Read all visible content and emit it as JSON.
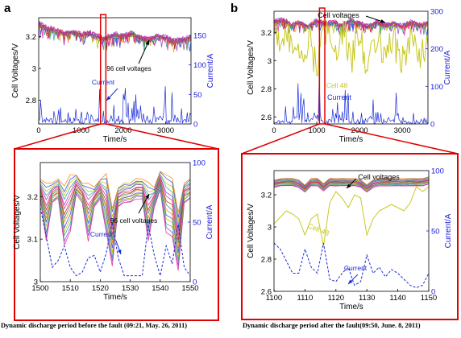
{
  "panels": [
    {
      "letter": "a",
      "caption": "Dynamic discharge period before the fault (09:21, May. 26, 2011)"
    },
    {
      "letter": "b",
      "caption": "Dynamic discharge period after the fault(09:50, June. 8, 2011)"
    }
  ],
  "colors": {
    "voltage_traces": [
      "#e0209a",
      "#9a40c0",
      "#30a0a0",
      "#c0c000",
      "#2050e0",
      "#ff7f00",
      "#2e8b57",
      "#d02030"
    ],
    "current": "#1a2bd8",
    "current_axis": "#1a1ad8",
    "zoom_box": "#e00000",
    "cell48": "#c8c820",
    "axis": "#000000"
  },
  "chart_data": [
    {
      "id": "a-top",
      "type": "line",
      "xlabel": "Time/s",
      "ylabel": "Cell Voltages/V",
      "y2label": "Current/A",
      "xlim": [
        0,
        3600
      ],
      "ylim": [
        2.65,
        3.32
      ],
      "y2lim": [
        0,
        180
      ],
      "xticks": [
        0,
        1000,
        2000,
        3000
      ],
      "yticks": [
        2.8,
        3,
        3.2
      ],
      "y2ticks": [
        0,
        50,
        100,
        150
      ],
      "annotations": [
        "96 cell voltages",
        "Current"
      ],
      "zoom_box_x": [
        1500,
        1550
      ],
      "series": [
        {
          "axis": "left",
          "x": [
            0,
            200,
            400,
            600,
            800,
            1000,
            1200,
            1400,
            1600,
            1800,
            2000,
            2200,
            2400,
            2600,
            2800,
            3000,
            3200,
            3400,
            3600
          ],
          "values": [
            3.28,
            3.25,
            3.24,
            3.22,
            3.23,
            3.21,
            3.22,
            3.2,
            3.19,
            3.21,
            3.2,
            3.22,
            3.19,
            3.18,
            3.2,
            3.19,
            3.17,
            3.18,
            3.19
          ]
        },
        {
          "axis": "right",
          "x": [
            0,
            200,
            400,
            600,
            800,
            1000,
            1200,
            1400,
            1600,
            1800,
            2000,
            2200,
            2400,
            2600,
            2800,
            3000,
            3200,
            3400,
            3600
          ],
          "values": [
            20,
            30,
            10,
            25,
            5,
            35,
            15,
            40,
            20,
            30,
            45,
            25,
            35,
            15,
            40,
            50,
            25,
            30,
            15
          ]
        }
      ]
    },
    {
      "id": "b-top",
      "type": "line",
      "xlabel": "Time/s",
      "ylabel": "Cell Voltages/V",
      "y2label": "Current/A",
      "xlim": [
        0,
        3600
      ],
      "ylim": [
        2.55,
        3.35
      ],
      "y2lim": [
        0,
        300
      ],
      "xticks": [
        0,
        1000,
        2000,
        3000
      ],
      "yticks": [
        2.6,
        2.8,
        3,
        3.2
      ],
      "y2ticks": [
        0,
        100,
        200,
        300
      ],
      "annotations": [
        "Cell voltages",
        "Cell 48",
        "Current"
      ],
      "zoom_box_x": [
        1100,
        1150
      ],
      "series": [
        {
          "axis": "left",
          "x": [
            0,
            200,
            400,
            600,
            800,
            1000,
            1200,
            1400,
            1600,
            1800,
            2000,
            2200,
            2400,
            2600,
            2800,
            3000,
            3200,
            3400,
            3600
          ],
          "values": [
            3.27,
            3.29,
            3.25,
            3.27,
            3.24,
            3.28,
            3.26,
            3.27,
            3.25,
            3.28,
            3.26,
            3.24,
            3.27,
            3.25,
            3.26,
            3.24,
            3.27,
            3.25,
            3.26
          ]
        },
        {
          "axis": "left",
          "name": "Cell 48",
          "x": [
            0,
            200,
            400,
            600,
            800,
            1000,
            1200,
            1400,
            1600,
            1800,
            2000,
            2200,
            2400,
            2600,
            2800,
            3000,
            3200,
            3400,
            3600
          ],
          "values": [
            3.24,
            3.1,
            3.2,
            3.0,
            3.15,
            2.98,
            3.2,
            3.05,
            3.24,
            3.0,
            3.18,
            2.95,
            3.2,
            3.05,
            3.15,
            2.98,
            3.18,
            3.0,
            3.1
          ]
        },
        {
          "axis": "right",
          "x": [
            0,
            200,
            400,
            600,
            800,
            1000,
            1200,
            1400,
            1600,
            1800,
            2000,
            2200,
            2400,
            2600,
            2800,
            3000,
            3200,
            3400,
            3600
          ],
          "values": [
            10,
            40,
            20,
            80,
            15,
            100,
            50,
            20,
            90,
            30,
            15,
            60,
            25,
            20,
            70,
            30,
            10,
            40,
            20
          ]
        }
      ]
    },
    {
      "id": "a-zoom",
      "type": "line",
      "xlabel": "Time/s",
      "ylabel": "Cell Voltages/V",
      "y2label": "Current/A",
      "xlim": [
        1500,
        1550
      ],
      "ylim": [
        3.0,
        3.28
      ],
      "y2lim": [
        0,
        100
      ],
      "xticks": [
        1500,
        1510,
        1520,
        1530,
        1540,
        1550
      ],
      "yticks": [
        3,
        3.1,
        3.2
      ],
      "y2ticks": [
        0,
        50,
        100
      ],
      "annotations": [
        "96 cell voltages",
        "Current"
      ],
      "series": [
        {
          "axis": "left",
          "x": [
            1500,
            1502,
            1504,
            1506,
            1508,
            1510,
            1512,
            1514,
            1516,
            1518,
            1520,
            1522,
            1524,
            1526,
            1528,
            1530,
            1532,
            1534,
            1536,
            1538,
            1540,
            1542,
            1544,
            1546,
            1548,
            1550
          ],
          "values": [
            3.22,
            3.17,
            3.21,
            3.22,
            3.16,
            3.19,
            3.23,
            3.21,
            3.17,
            3.2,
            3.22,
            3.19,
            3.11,
            3.2,
            3.21,
            3.21,
            3.22,
            3.22,
            3.17,
            3.2,
            3.24,
            3.19,
            3.18,
            3.1,
            3.21,
            3.22
          ]
        },
        {
          "axis": "right",
          "x": [
            1500,
            1502,
            1504,
            1506,
            1508,
            1510,
            1512,
            1514,
            1516,
            1518,
            1520,
            1522,
            1524,
            1526,
            1528,
            1530,
            1532,
            1534,
            1536,
            1538,
            1540,
            1542,
            1544,
            1546,
            1548,
            1550
          ],
          "values": [
            62,
            38,
            12,
            18,
            30,
            12,
            5,
            8,
            20,
            22,
            8,
            24,
            50,
            20,
            5,
            5,
            5,
            5,
            48,
            22,
            5,
            30,
            15,
            48,
            12,
            5
          ]
        }
      ]
    },
    {
      "id": "b-zoom",
      "type": "line",
      "xlabel": "Time/s",
      "ylabel": "Cell Voltages/V",
      "y2label": "Current/A",
      "xlim": [
        1100,
        1150
      ],
      "ylim": [
        2.6,
        3.35
      ],
      "y2lim": [
        0,
        100
      ],
      "xticks": [
        1100,
        1110,
        1120,
        1130,
        1140,
        1150
      ],
      "yticks": [
        2.6,
        2.8,
        3,
        3.2
      ],
      "y2ticks": [
        0,
        50,
        100
      ],
      "annotations": [
        "Cell voltages",
        "Cell 48",
        "Current"
      ],
      "series": [
        {
          "axis": "left",
          "x": [
            1100,
            1102,
            1104,
            1106,
            1108,
            1110,
            1112,
            1114,
            1116,
            1118,
            1120,
            1122,
            1124,
            1126,
            1128,
            1130,
            1132,
            1134,
            1136,
            1138,
            1140,
            1142,
            1144,
            1146,
            1148,
            1150
          ],
          "values": [
            3.27,
            3.28,
            3.28,
            3.28,
            3.27,
            3.24,
            3.28,
            3.28,
            3.25,
            3.28,
            3.28,
            3.28,
            3.28,
            3.28,
            3.27,
            3.24,
            3.27,
            3.28,
            3.28,
            3.28,
            3.28,
            3.28,
            3.28,
            3.28,
            3.28,
            3.29
          ]
        },
        {
          "axis": "left",
          "name": "Cell 48",
          "x": [
            1100,
            1102,
            1104,
            1106,
            1108,
            1110,
            1112,
            1114,
            1116,
            1118,
            1120,
            1122,
            1124,
            1126,
            1128,
            1130,
            1132,
            1134,
            1136,
            1138,
            1140,
            1142,
            1144,
            1146,
            1148,
            1150
          ],
          "values": [
            3.02,
            3.06,
            3.1,
            3.08,
            3.05,
            2.95,
            3.05,
            3.08,
            2.88,
            3.15,
            3.22,
            3.18,
            3.12,
            3.2,
            3.18,
            2.95,
            3.05,
            3.1,
            3.12,
            3.14,
            3.12,
            3.1,
            3.15,
            3.25,
            3.22,
            3.25
          ]
        },
        {
          "axis": "right",
          "x": [
            1100,
            1102,
            1104,
            1106,
            1108,
            1110,
            1112,
            1114,
            1116,
            1118,
            1120,
            1122,
            1124,
            1126,
            1128,
            1130,
            1132,
            1134,
            1136,
            1138,
            1140,
            1142,
            1144,
            1146,
            1148,
            1150
          ],
          "values": [
            40,
            35,
            25,
            15,
            15,
            35,
            20,
            15,
            40,
            10,
            8,
            15,
            20,
            5,
            8,
            30,
            15,
            20,
            12,
            18,
            15,
            10,
            5,
            3,
            5,
            15
          ]
        }
      ]
    }
  ]
}
